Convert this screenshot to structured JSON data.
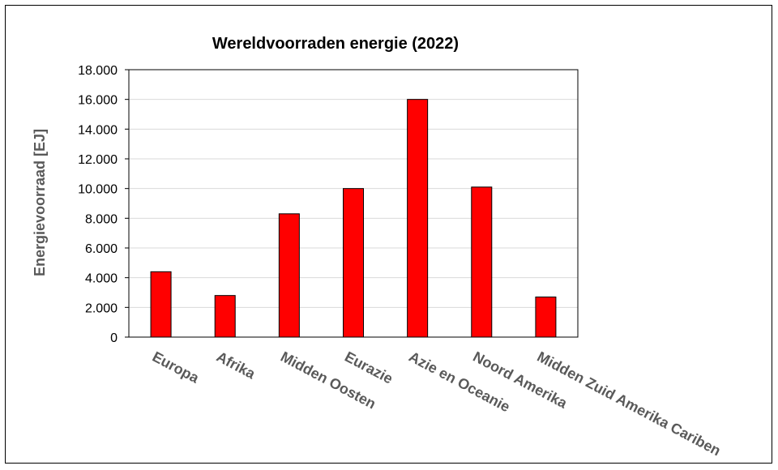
{
  "chart_data": {
    "type": "bar",
    "title": "Wereldvoorraden energie (2022)",
    "xlabel": "",
    "ylabel": "Energievoorraad [EJ]",
    "categories": [
      "Europa",
      "Afrika",
      "Midden Oosten",
      "Eurazie",
      "Azie en Oceanie",
      "Noord Amerika",
      "Midden Zuid Amerika Cariben"
    ],
    "values": [
      4400,
      2800,
      8300,
      10000,
      16000,
      10100,
      2700
    ],
    "ylim": [
      0,
      18000
    ],
    "yticks": [
      0,
      2000,
      4000,
      6000,
      8000,
      10000,
      12000,
      14000,
      16000,
      18000
    ],
    "ytick_labels": [
      "0",
      "2.000",
      "4.000",
      "6.000",
      "8.000",
      "10.000",
      "12.000",
      "14.000",
      "16.000",
      "18.000"
    ],
    "grid": true,
    "legend": "none",
    "bar_color": "#ff0000",
    "label_color": "#595959",
    "grid_color": "#d9d9d9"
  }
}
